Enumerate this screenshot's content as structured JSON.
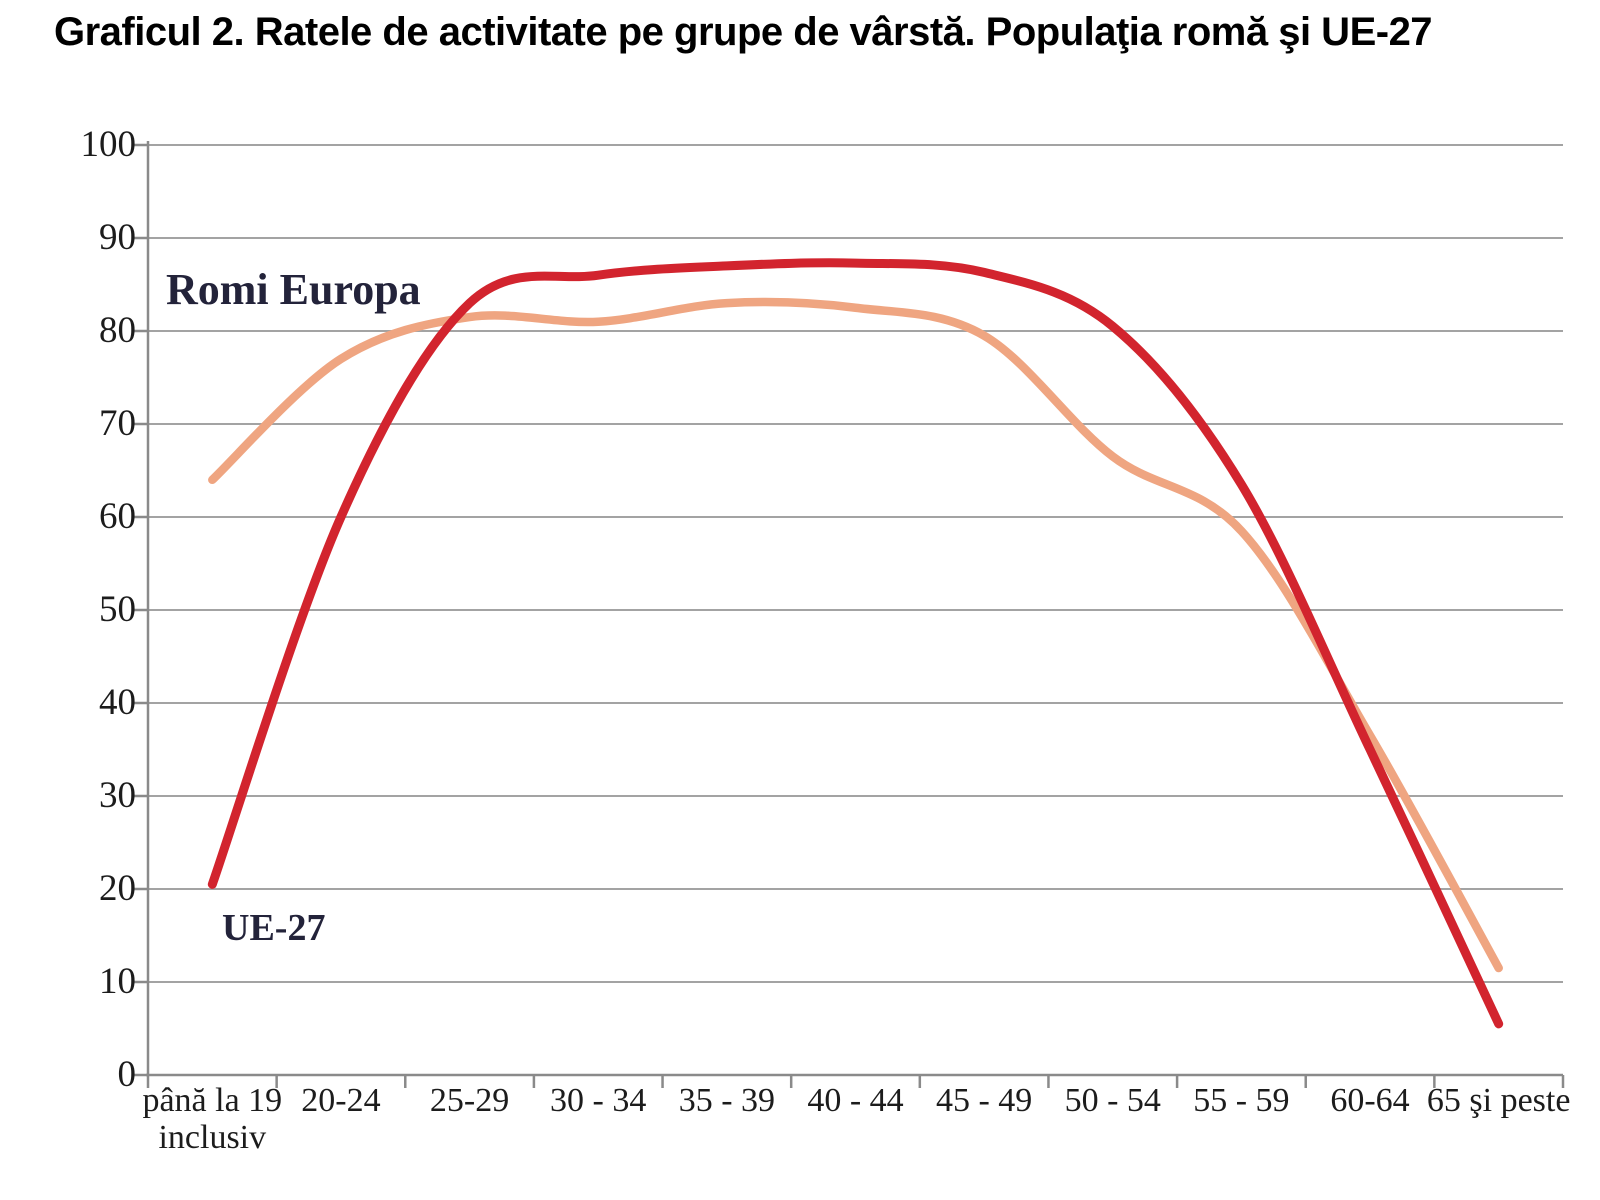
{
  "title": "Graficul 2. Ratele de activitate pe grupe de vârstă. Populaţia romă şi UE-27",
  "series_labels": {
    "romi": "Romi Europa",
    "ue27": "UE-27"
  },
  "colors": {
    "ue27_line": "#d2242e",
    "romi_line": "#efa581",
    "gridline": "#a3a3a3",
    "axis": "#8a8a8a",
    "series_label_text": "#23233a",
    "tick_label_text": "#1c1c1c",
    "title_text": "#000000"
  },
  "chart_data": {
    "type": "line",
    "title": "Graficul 2. Ratele de activitate pe grupe de vârstă. Populaţia romă şi UE-27",
    "xlabel": "",
    "ylabel": "",
    "categories": [
      "până la 19\ninclusiv",
      "20-24",
      "25-29",
      "30 - 34",
      "35 - 39",
      "40 - 44",
      "45 - 49",
      "50 - 54",
      "55 - 59",
      "60-64",
      "65 şi peste"
    ],
    "series": [
      {
        "name": "Romi Europa",
        "color_key": "romi_line",
        "values": [
          64,
          77,
          81.5,
          81,
          83,
          82.5,
          79.5,
          66.5,
          58.5,
          36.5,
          11.5
        ]
      },
      {
        "name": "UE-27",
        "color_key": "ue27_line",
        "values": [
          20.5,
          60,
          83,
          86,
          87,
          87.3,
          86.3,
          80.5,
          63.5,
          35,
          5.5
        ]
      }
    ],
    "ylim": [
      0,
      100
    ],
    "yticks": [
      0,
      10,
      20,
      30,
      40,
      50,
      60,
      70,
      80,
      90,
      100
    ],
    "grid": "horizontal",
    "legend": "inline-labels"
  }
}
